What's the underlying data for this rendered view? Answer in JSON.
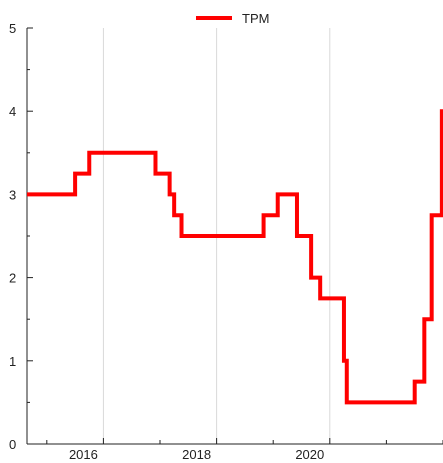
{
  "chart_data": {
    "type": "line",
    "series": [
      {
        "name": "TPM",
        "color": "#ff0000",
        "step": true,
        "points": [
          {
            "x": 2014.65,
            "y": 3.0
          },
          {
            "x": 2015.5,
            "y": 3.25
          },
          {
            "x": 2015.75,
            "y": 3.5
          },
          {
            "x": 2016.92,
            "y": 3.25
          },
          {
            "x": 2017.17,
            "y": 3.0
          },
          {
            "x": 2017.25,
            "y": 2.75
          },
          {
            "x": 2017.38,
            "y": 2.5
          },
          {
            "x": 2018.83,
            "y": 2.75
          },
          {
            "x": 2019.08,
            "y": 3.0
          },
          {
            "x": 2019.42,
            "y": 2.5
          },
          {
            "x": 2019.67,
            "y": 2.0
          },
          {
            "x": 2019.83,
            "y": 1.75
          },
          {
            "x": 2020.25,
            "y": 1.0
          },
          {
            "x": 2020.3,
            "y": 0.5
          },
          {
            "x": 2021.5,
            "y": 0.75
          },
          {
            "x": 2021.67,
            "y": 1.5
          },
          {
            "x": 2021.8,
            "y": 2.75
          },
          {
            "x": 2021.98,
            "y": 4.0
          }
        ],
        "x_end": 2022.0
      }
    ],
    "x_ticks": [
      {
        "value": 2016,
        "label": "2016"
      },
      {
        "value": 2018,
        "label": "2018"
      },
      {
        "value": 2020,
        "label": "2020"
      }
    ],
    "y_ticks": [
      {
        "value": 0,
        "label": "0"
      },
      {
        "value": 1,
        "label": "1"
      },
      {
        "value": 2,
        "label": "2"
      },
      {
        "value": 3,
        "label": "3"
      },
      {
        "value": 4,
        "label": "4"
      },
      {
        "value": 5,
        "label": "5"
      }
    ],
    "xlim": [
      2014.65,
      2022.0
    ],
    "ylim": [
      0,
      5
    ],
    "grid": true,
    "legend_position": "top-center",
    "title": "",
    "xlabel": "",
    "ylabel": ""
  }
}
